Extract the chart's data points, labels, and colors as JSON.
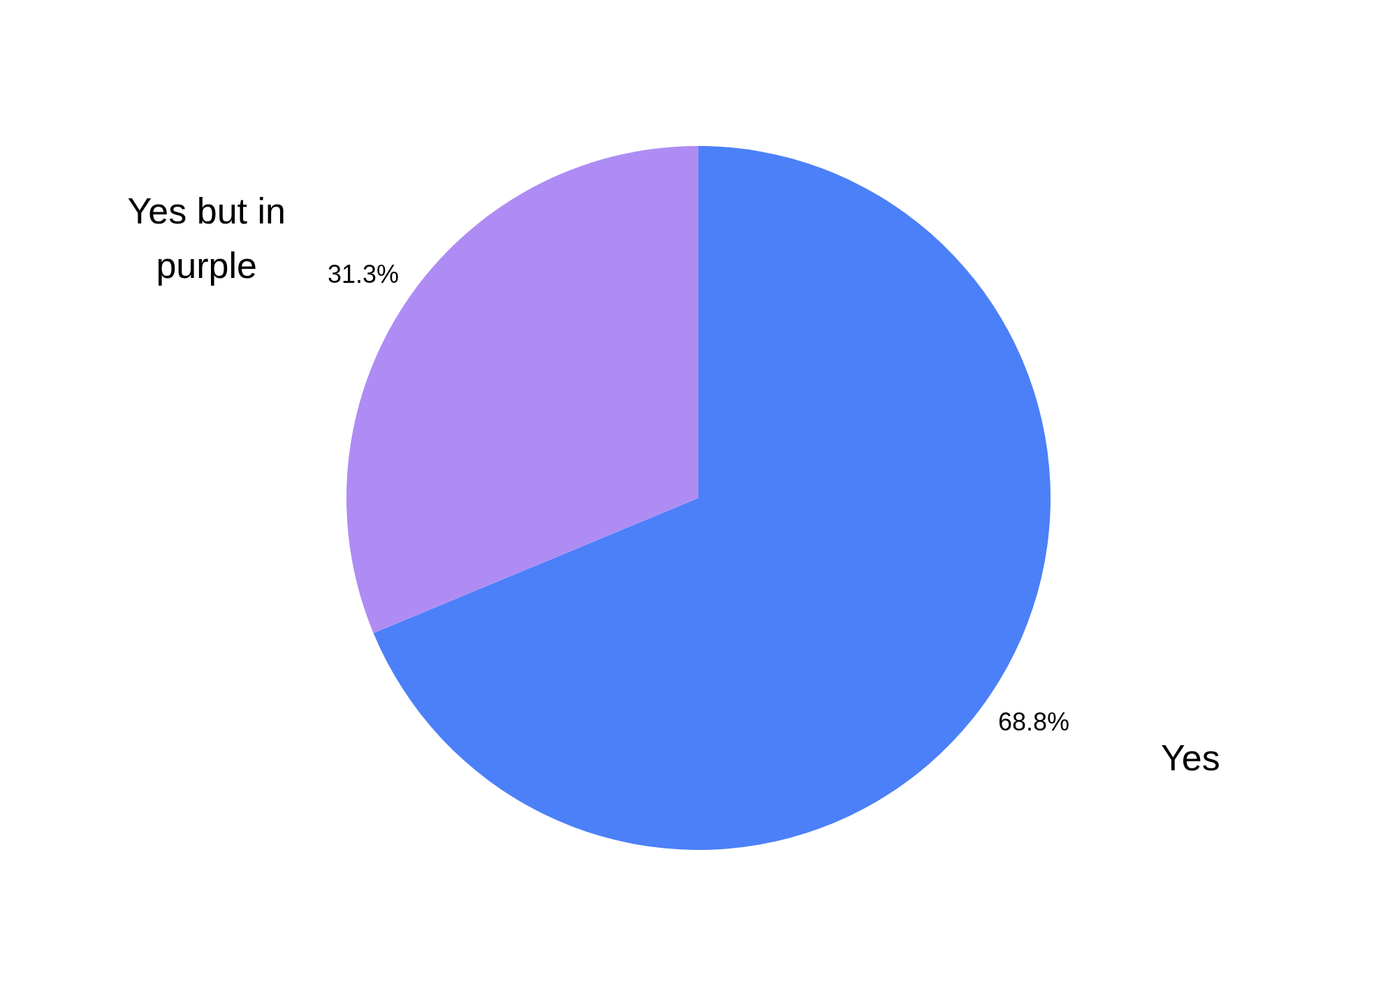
{
  "chart_data": {
    "type": "pie",
    "categories": [
      "Yes",
      "Yes but in purple"
    ],
    "values": [
      68.8,
      31.3
    ],
    "colors": [
      "#4c80f8",
      "#ae8cf4"
    ],
    "value_labels": [
      "68.8%",
      "31.3%"
    ]
  }
}
